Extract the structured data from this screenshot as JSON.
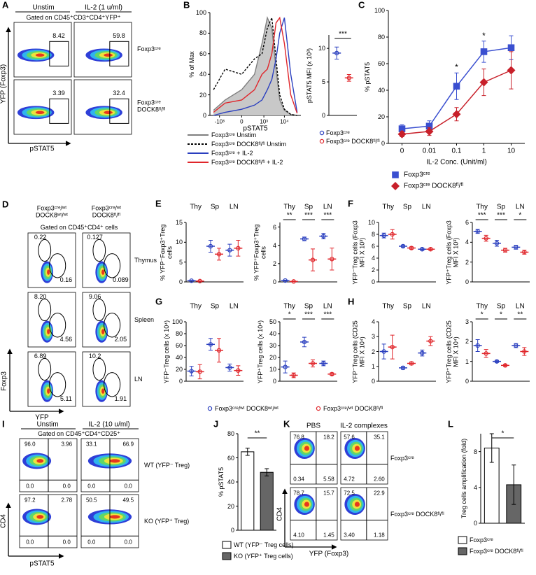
{
  "panel_labels": [
    "A",
    "B",
    "C",
    "D",
    "E",
    "F",
    "G",
    "H",
    "I",
    "J",
    "K",
    "L"
  ],
  "flow_a": {
    "headers": [
      "Unstim",
      "IL-2 (1 u/ml)"
    ],
    "gate": "Gated on CD45⁺CD3⁺CD4⁺YFP⁺",
    "rows": [
      "Foxp3ᶜʳᵉ",
      "Foxp3ᶜʳᵉ DOCK8ᶠˡ/ᶠˡ"
    ],
    "values": [
      [
        "8.42",
        "59.8"
      ],
      [
        "3.39",
        "32.4"
      ]
    ],
    "y_label": "YFP (Foxp3)",
    "x_label": "pSTAT5"
  },
  "flow_d": {
    "headers": [
      "Foxp3ᶜʳᵉ/ʷᵗ DOCK8ʷᵗ/ʷᵗ",
      "Foxp3ᶜʳᵉ/ʷᵗ DOCK8ᶠˡ/ᶠˡ"
    ],
    "gate": "Gated on CD45⁺CD4⁺ cells",
    "rows": [
      "Thymus",
      "Spleen",
      "LN"
    ],
    "values": [
      [
        [
          "0.22",
          "0.16"
        ],
        [
          "0.127",
          "0.089"
        ]
      ],
      [
        [
          "8.20",
          "4.56"
        ],
        [
          "9.06",
          "2.05"
        ]
      ],
      [
        [
          "6.89",
          "5.11"
        ],
        [
          "10.2",
          "1.91"
        ]
      ]
    ],
    "y_label": "Foxp3",
    "x_label": "YFP"
  },
  "flow_i": {
    "headers": [
      "Unstim",
      "IL-2 (10 u/ml)"
    ],
    "gate": "Gated on CD45⁺CD4⁺CD25⁺",
    "rows": [
      "WT (YFP⁻ Treg)",
      "KO (YFP⁺ Treg)"
    ],
    "values": [
      [
        [
          "96.0",
          "3.96",
          "0.0",
          "0.0"
        ],
        [
          "33.1",
          "66.9",
          "0.0",
          "0.0"
        ]
      ],
      [
        [
          "97.2",
          "2.78",
          "0.0",
          "0.0"
        ],
        [
          "50.5",
          "49.5",
          "0.0",
          "0.0"
        ]
      ]
    ],
    "y_label": "CD4",
    "x_label": "pSTAT5"
  },
  "flow_k": {
    "headers": [
      "PBS",
      "IL-2 complexes"
    ],
    "rows": [
      "Foxp3ᶜʳᵉ",
      "Foxp3ᶜʳᵉ DOCK8ᶠˡ/ᶠˡ"
    ],
    "values": [
      [
        [
          "76.8",
          "18.2",
          "0.34",
          "5.58"
        ],
        [
          "57.6",
          "35.1",
          "4.72",
          "2.60"
        ]
      ],
      [
        [
          "78.7",
          "15.7",
          "4.10",
          "1.45"
        ],
        [
          "72.5",
          "22.9",
          "3.40",
          "1.18"
        ]
      ]
    ],
    "y_label": "CD4",
    "x_label": "YFP (Foxp3)"
  },
  "legend_efgh": [
    {
      "name": "Foxp3ᶜʳᵉ/ʷᵗ DOCK8ʷᵗ/ʷᵗ",
      "color": "#2a3fbf"
    },
    {
      "name": "Foxp3ᶜʳᵉ/ʷᵗ DOCK8ᶠˡ/ᶠˡ",
      "color": "#e0262b"
    }
  ],
  "chart_data": [
    {
      "type": "density",
      "x_label": "pSTAT5",
      "y_label": "% of Max",
      "x_scale": "biexponential",
      "xlim": [
        -3000,
        60000
      ],
      "xticks": [
        {
          "value": -1000,
          "label": "-10³"
        },
        0,
        {
          "value": 1000,
          "label": "10³"
        },
        {
          "value": 10000,
          "label": "10⁴"
        }
      ],
      "ylim": [
        0,
        100
      ],
      "yticks": [
        0,
        20,
        40,
        60,
        80,
        100
      ],
      "x": [
        -2000,
        -500,
        0,
        300,
        800,
        1500,
        2500,
        4000,
        6000,
        10000,
        20000,
        40000
      ],
      "series": [
        {
          "name": "Foxp3ᶜʳᵉ Unstim",
          "color": "#7f7f7f",
          "fill": "#c8c8c8",
          "style": "solid",
          "values": [
            5,
            15,
            25,
            40,
            70,
            95,
            85,
            45,
            15,
            5,
            1,
            0
          ]
        },
        {
          "name": "Foxp3ᶜʳᵉ DOCK8ᶠˡ/ᶠˡ Unstim",
          "color": "#000000",
          "style": "dashed",
          "values": [
            25,
            45,
            40,
            55,
            60,
            85,
            95,
            55,
            20,
            6,
            1,
            0
          ]
        },
        {
          "name": "Foxp3ᶜʳᵉ + IL-2",
          "color": "#2a3fbf",
          "style": "solid",
          "values": [
            0,
            3,
            6,
            10,
            15,
            25,
            35,
            55,
            80,
            95,
            40,
            3
          ]
        },
        {
          "name": "Foxp3ᶜʳᵉ DOCK8ᶠˡ/ᶠˡ + IL-2",
          "color": "#e0262b",
          "style": "solid",
          "values": [
            3,
            12,
            15,
            25,
            40,
            45,
            60,
            90,
            95,
            70,
            20,
            2
          ]
        }
      ]
    },
    {
      "type": "dot",
      "y_label": "pSTAT5 MFI (x 10³)",
      "ylim": [
        0,
        12
      ],
      "yticks": [
        0,
        5,
        10
      ],
      "legend": true,
      "significance": [
        "***"
      ],
      "series": [
        {
          "name": "Foxp3ᶜʳᵉ",
          "color": "#2a3fbf",
          "values": [
            9.3
          ],
          "errors": [
            0.9
          ]
        },
        {
          "name": "Foxp3ᶜʳᵉ DOCK8ᶠˡ/ᶠˡ",
          "color": "#e0262b",
          "values": [
            5.6
          ],
          "errors": [
            0.5
          ]
        }
      ]
    },
    {
      "type": "line",
      "x_label": "IL-2 Conc. (Unit/ml)",
      "y_label": "% pSTAT5",
      "categories": [
        "0",
        "0.01",
        "0.1",
        "1",
        "10"
      ],
      "ylim": [
        0,
        100
      ],
      "yticks": [
        0,
        20,
        40,
        60,
        80,
        100
      ],
      "significance": [
        null,
        null,
        "*",
        "*",
        null
      ],
      "series": [
        {
          "name": "Foxp3ᶜʳᵉ",
          "color": "#3a4fd0",
          "marker": "square",
          "values": [
            11,
            13,
            43,
            69,
            72
          ],
          "errors": [
            3,
            4,
            10,
            8,
            9
          ]
        },
        {
          "name": "Foxp3ᶜʳᵉ DOCK8ᶠˡ/ᶠˡ",
          "color": "#c8202a",
          "marker": "diamond",
          "values": [
            7,
            9,
            22,
            46,
            55
          ],
          "errors": [
            2,
            3,
            5,
            10,
            14
          ]
        }
      ]
    },
    {
      "type": "dot",
      "y_label": "% YFP⁻Foxp3⁺Treg cells",
      "categories": [
        "Thy",
        "Sp",
        "LN"
      ],
      "ylim": [
        0,
        15
      ],
      "yticks": [
        0,
        5,
        10,
        15
      ],
      "significance": [
        null,
        null,
        null
      ],
      "series": [
        {
          "color": "#2a3fbf",
          "values": [
            0.3,
            9,
            8
          ],
          "errors": [
            0.1,
            1.5,
            1.5
          ]
        },
        {
          "color": "#e0262b",
          "values": [
            0.2,
            7,
            8.5
          ],
          "errors": [
            0.1,
            1.5,
            2
          ]
        }
      ]
    },
    {
      "type": "dot",
      "y_label": "% YFP⁺Foxp3⁺Treg cells",
      "categories": [
        "Thy",
        "Sp",
        "LN"
      ],
      "ylim": [
        0,
        6.5
      ],
      "yticks": [
        0,
        2,
        4,
        6
      ],
      "significance": [
        "**",
        "***",
        "***"
      ],
      "series": [
        {
          "color": "#2a3fbf",
          "values": [
            0.15,
            4.7,
            5
          ],
          "errors": [
            0.05,
            0.2,
            0.3
          ]
        },
        {
          "color": "#e0262b",
          "values": [
            0.05,
            2.4,
            2.5
          ],
          "errors": [
            0.05,
            1.2,
            1.2
          ]
        }
      ]
    },
    {
      "type": "dot",
      "y_label": "YFP⁻Treg cells (Foxp3 MFI X 10³)",
      "categories": [
        "Thy",
        "Sp",
        "LN"
      ],
      "ylim": [
        0,
        10
      ],
      "yticks": [
        0,
        2,
        4,
        6,
        8,
        10
      ],
      "significance": [
        null,
        null,
        null
      ],
      "series": [
        {
          "color": "#2a3fbf",
          "values": [
            7.8,
            6,
            5.5
          ],
          "errors": [
            0.4,
            0.2,
            0.2
          ]
        },
        {
          "color": "#e0262b",
          "values": [
            8,
            5.7,
            5.5
          ],
          "errors": [
            0.8,
            0.2,
            0.2
          ]
        }
      ]
    },
    {
      "type": "dot",
      "y_label": "YFP⁺Treg cells (Foxp3 MFI X 10³)",
      "categories": [
        "Thy",
        "Sp",
        "LN"
      ],
      "ylim": [
        0,
        6
      ],
      "yticks": [
        0,
        2,
        4,
        6
      ],
      "significance": [
        "***",
        "***",
        "*"
      ],
      "series": [
        {
          "color": "#2a3fbf",
          "values": [
            5.1,
            3.9,
            3.5
          ],
          "errors": [
            0.2,
            0.3,
            0.2
          ]
        },
        {
          "color": "#e0262b",
          "values": [
            4.4,
            3.2,
            3.0
          ],
          "errors": [
            0.3,
            0.2,
            0.2
          ]
        }
      ]
    },
    {
      "type": "dot",
      "y_label": "YFP⁻Treg cells (x 10⁴)",
      "categories": [
        "Thy",
        "Sp",
        "LN"
      ],
      "ylim": [
        0,
        100
      ],
      "yticks": [
        0,
        20,
        40,
        60,
        80,
        100
      ],
      "significance": [
        null,
        null,
        null
      ],
      "series": [
        {
          "color": "#2a3fbf",
          "values": [
            17,
            62,
            23
          ],
          "errors": [
            8,
            10,
            6
          ]
        },
        {
          "color": "#e0262b",
          "values": [
            16,
            52,
            18
          ],
          "errors": [
            12,
            20,
            8
          ]
        }
      ]
    },
    {
      "type": "dot",
      "y_label": "YFP⁺Treg cells (x 10⁴)",
      "categories": [
        "Thy",
        "Sp",
        "LN"
      ],
      "ylim": [
        0,
        50
      ],
      "yticks": [
        0,
        10,
        20,
        30,
        40,
        50
      ],
      "significance": [
        "*",
        "***",
        "***"
      ],
      "series": [
        {
          "color": "#2a3fbf",
          "values": [
            12,
            33,
            15
          ],
          "errors": [
            5,
            4,
            2
          ]
        },
        {
          "color": "#e0262b",
          "values": [
            5,
            15,
            6
          ],
          "errors": [
            2,
            3,
            1
          ]
        }
      ]
    },
    {
      "type": "dot",
      "y_label": "YFP⁻Treg cells (CD25 MFI X 10⁴)",
      "categories": [
        "Thy",
        "Sp",
        "LN"
      ],
      "ylim": [
        0,
        4
      ],
      "yticks": [
        0,
        1,
        2,
        3,
        4
      ],
      "significance": [
        null,
        null,
        null
      ],
      "series": [
        {
          "color": "#2a3fbf",
          "values": [
            2.0,
            0.9,
            1.9
          ],
          "errors": [
            0.5,
            0.1,
            0.2
          ]
        },
        {
          "color": "#e0262b",
          "values": [
            2.3,
            1.2,
            2.7
          ],
          "errors": [
            0.8,
            0.1,
            0.3
          ]
        }
      ]
    },
    {
      "type": "dot",
      "y_label": "YFP⁺Treg cells (CD25 MFI X 10⁴)",
      "categories": [
        "Thy",
        "Sp",
        "LN"
      ],
      "ylim": [
        0,
        3
      ],
      "yticks": [
        0,
        1,
        2,
        3
      ],
      "significance": [
        "*",
        "*",
        "**"
      ],
      "series": [
        {
          "color": "#2a3fbf",
          "values": [
            1.8,
            1.0,
            1.8
          ],
          "errors": [
            0.3,
            0.05,
            0.1
          ]
        },
        {
          "color": "#e0262b",
          "values": [
            1.4,
            0.8,
            1.5
          ],
          "errors": [
            0.2,
            0.05,
            0.2
          ]
        }
      ]
    },
    {
      "type": "bar",
      "y_label": "% pSTAT5",
      "ylim": [
        0,
        80
      ],
      "yticks": [
        0,
        20,
        40,
        60,
        80
      ],
      "significance": [
        "**"
      ],
      "series": [
        {
          "name": "WT (YFP⁻ Treg cells)",
          "color": "#ffffff",
          "values": [
            65
          ],
          "errors": [
            3
          ]
        },
        {
          "name": "KO (YFP⁺ Treg cells)",
          "color": "#666666",
          "values": [
            48
          ],
          "errors": [
            3
          ]
        }
      ]
    },
    {
      "type": "bar",
      "y_label": "Treg cells amplification (fold)",
      "ylim": [
        0,
        10
      ],
      "yticks": [
        0,
        4,
        8
      ],
      "significance": [
        "*"
      ],
      "series": [
        {
          "name": "Foxp3ᶜʳᵉ",
          "color": "#ffffff",
          "values": [
            8.4
          ],
          "errors": [
            1.6
          ]
        },
        {
          "name": "Foxp3ᶜʳᵉ DOCK8ᶠˡ/ᶠˡ",
          "color": "#666666",
          "values": [
            4.3
          ],
          "errors": [
            2.2
          ]
        }
      ]
    }
  ]
}
